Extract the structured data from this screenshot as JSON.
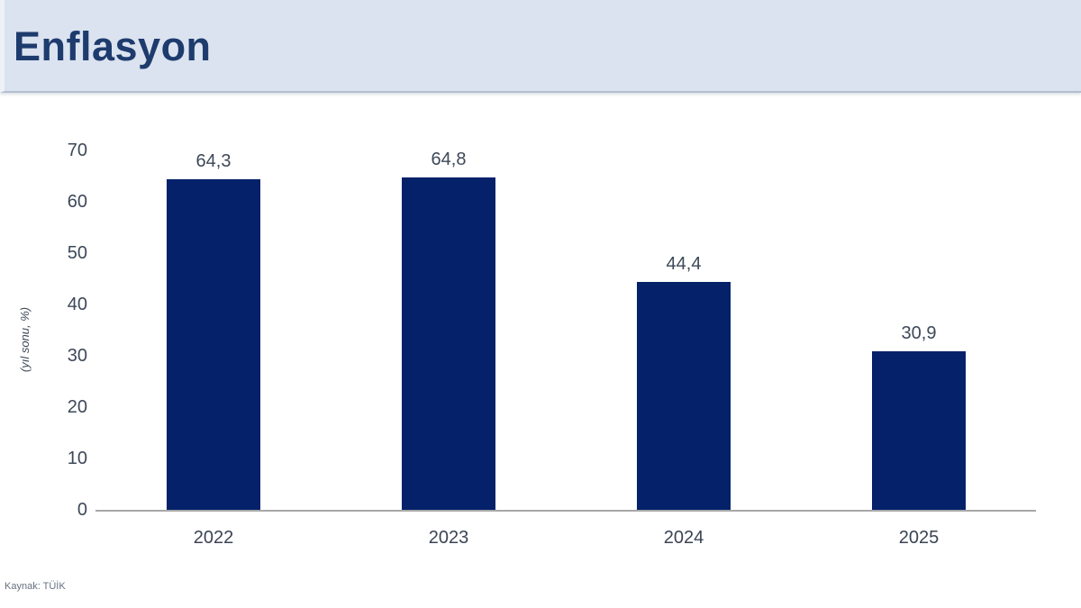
{
  "header": {
    "title": "Enflasyon"
  },
  "source": {
    "label": "Kaynak: TÜİK"
  },
  "colors": {
    "bar": "#042169",
    "header_bg": "#dae3ef",
    "title_text": "#1e3b6e",
    "axis_line": "#a8a8a8",
    "label_text": "#3d4858"
  },
  "chart_data": {
    "type": "bar",
    "title": "Enflasyon",
    "categories": [
      "2022",
      "2023",
      "2024",
      "2025"
    ],
    "values": [
      64.3,
      64.8,
      44.4,
      30.9
    ],
    "value_labels": [
      "64,3",
      "64,8",
      "44,4",
      "30,9"
    ],
    "xlabel": "",
    "ylabel": "(yıl sonu, %)",
    "ylim": [
      0,
      70
    ],
    "yticks": [
      0,
      10,
      20,
      30,
      40,
      50,
      60,
      70
    ],
    "grid": false,
    "legend_position": "none",
    "source": "Kaynak: TÜİK"
  }
}
